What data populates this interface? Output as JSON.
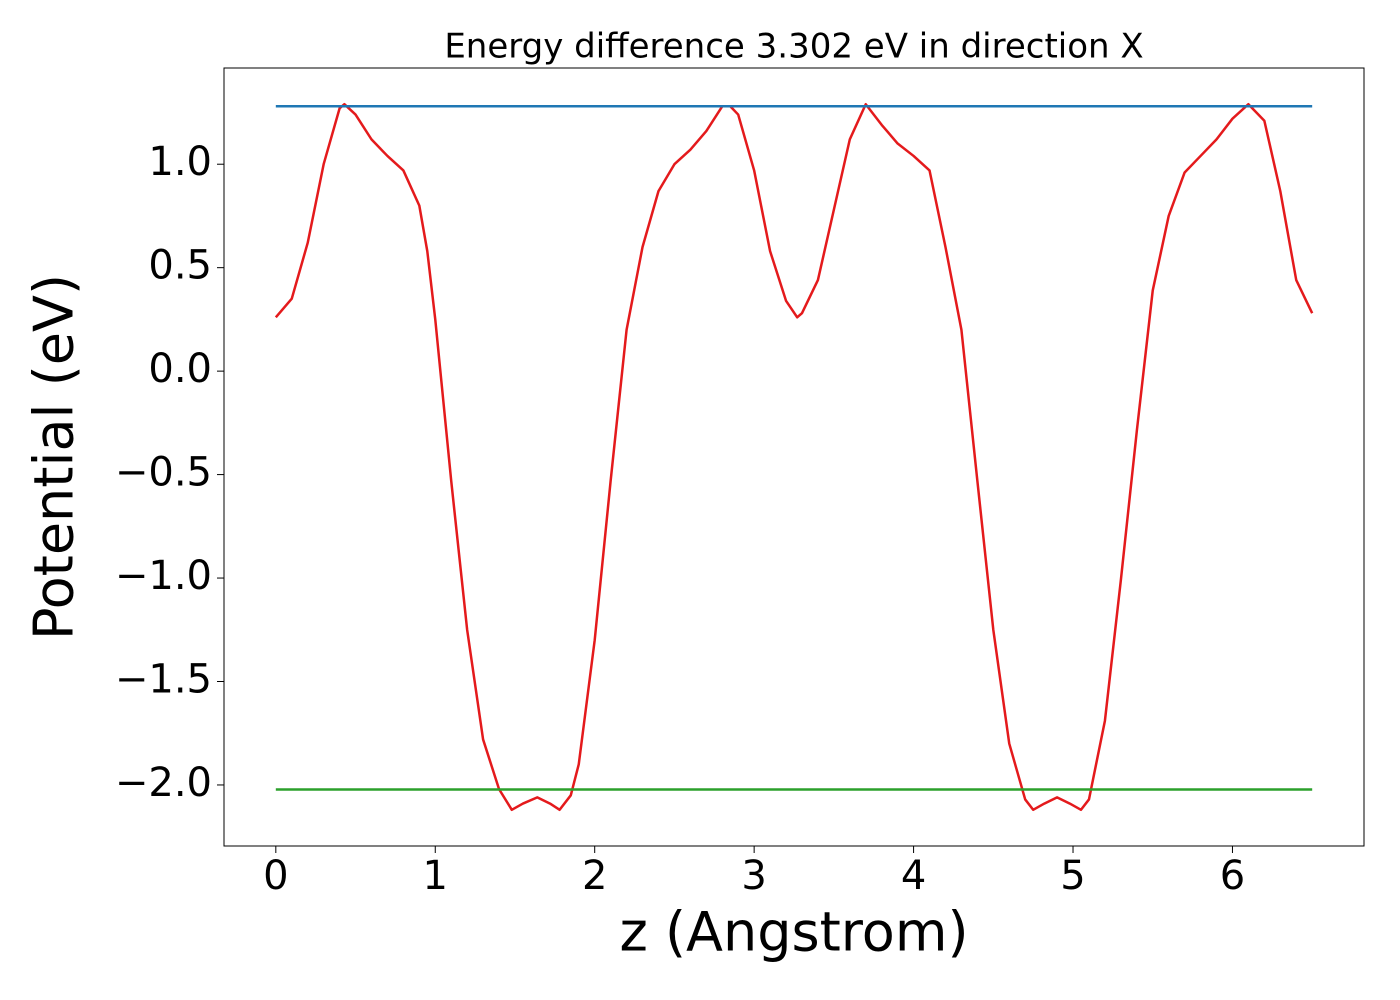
{
  "chart_data": {
    "type": "line",
    "title": "Energy difference 3.302 eV in direction X",
    "xlabel": "z (Angstrom)",
    "ylabel": "Potential (eV)",
    "xlim": [
      -0.325,
      6.825
    ],
    "ylim": [
      -2.295,
      1.465
    ],
    "xticks": [
      0,
      1,
      2,
      3,
      4,
      5,
      6
    ],
    "yticks": [
      {
        "value": -2,
        "label": "−2.0"
      },
      {
        "value": -1.5,
        "label": "−1.5"
      },
      {
        "value": -1,
        "label": "−1.0"
      },
      {
        "value": -0.5,
        "label": "−0.5"
      },
      {
        "value": 0,
        "label": "0.0"
      },
      0.5,
      {
        "value": 1,
        "label": "1.0"
      }
    ],
    "grid": false,
    "series": [
      {
        "color": "#e41a1c",
        "x": [
          0,
          0.1,
          0.2,
          0.3,
          0.4,
          0.43,
          0.5,
          0.6,
          0.7,
          0.8,
          0.9,
          0.95,
          1.0,
          1.1,
          1.2,
          1.3,
          1.4,
          1.48,
          1.55,
          1.64,
          1.72,
          1.78,
          1.85,
          1.9,
          2.0,
          2.1,
          2.2,
          2.3,
          2.4,
          2.5,
          2.6,
          2.7,
          2.8,
          2.85,
          2.9,
          3.0,
          3.1,
          3.2,
          3.27,
          3.3,
          3.4,
          3.5,
          3.6,
          3.7,
          3.8,
          3.9,
          4.0,
          4.1,
          4.2,
          4.3,
          4.4,
          4.5,
          4.6,
          4.7,
          4.75,
          4.82,
          4.9,
          4.98,
          5.05,
          5.1,
          5.2,
          5.3,
          5.4,
          5.5,
          5.6,
          5.7,
          5.8,
          5.9,
          6.0,
          6.1,
          6.2,
          6.3,
          6.4,
          6.5
        ],
        "values": [
          0.26,
          0.35,
          0.62,
          1.0,
          1.27,
          1.29,
          1.24,
          1.12,
          1.04,
          0.97,
          0.8,
          0.58,
          0.25,
          -0.53,
          -1.25,
          -1.78,
          -2.02,
          -2.12,
          -2.09,
          -2.06,
          -2.09,
          -2.12,
          -2.05,
          -1.9,
          -1.3,
          -0.53,
          0.2,
          0.6,
          0.87,
          1.0,
          1.07,
          1.16,
          1.28,
          1.28,
          1.24,
          0.97,
          0.58,
          0.34,
          0.26,
          0.28,
          0.44,
          0.78,
          1.12,
          1.29,
          1.19,
          1.1,
          1.04,
          0.97,
          0.6,
          0.2,
          -0.53,
          -1.25,
          -1.8,
          -2.07,
          -2.12,
          -2.09,
          -2.06,
          -2.09,
          -2.12,
          -2.07,
          -1.69,
          -1.01,
          -0.29,
          0.39,
          0.75,
          0.96,
          1.04,
          1.12,
          1.22,
          1.29,
          1.21,
          0.87,
          0.44,
          0.28
        ]
      },
      {
        "color": "#1f77b4",
        "x": [
          0,
          6.5
        ],
        "values": [
          1.28,
          1.28
        ]
      },
      {
        "color": "#2ca02c",
        "x": [
          0,
          6.5
        ],
        "values": [
          -2.022,
          -2.022
        ]
      }
    ]
  }
}
